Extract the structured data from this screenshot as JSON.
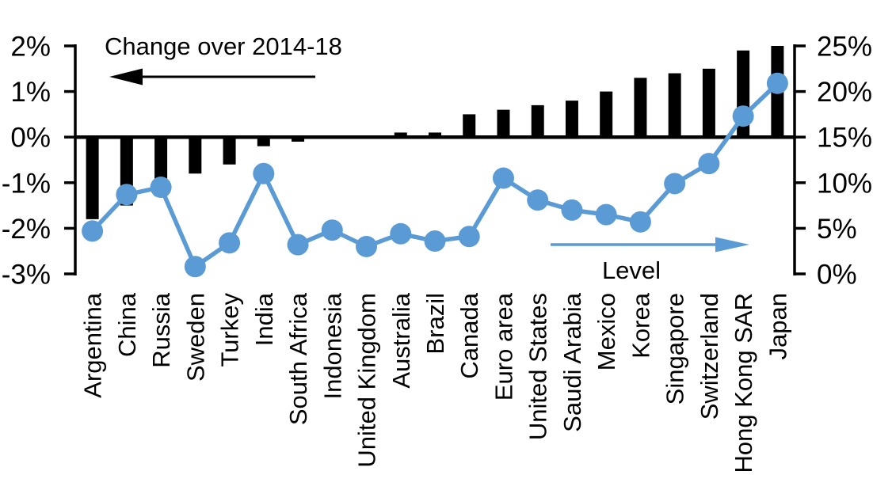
{
  "chart_data": {
    "type": "bar+line-combo",
    "categories": [
      "Argentina",
      "China",
      "Russia",
      "Sweden",
      "Turkey",
      "India",
      "South Africa",
      "Indonesia",
      "United Kingdom",
      "Australia",
      "Brazil",
      "Canada",
      "Euro area",
      "United States",
      "Saudi Arabia",
      "Mexico",
      "Korea",
      "Singapore",
      "Switzerland",
      "Hong Kong SAR",
      "Japan"
    ],
    "series": [
      {
        "name": "Change over 2014-18",
        "type": "bar",
        "axis": "left",
        "unit": "%",
        "color": "#000000",
        "values": [
          -1.8,
          -1.5,
          -1.3,
          -0.8,
          -0.6,
          -0.2,
          -0.1,
          0,
          0,
          0.1,
          0.1,
          0.5,
          0.6,
          0.7,
          0.8,
          1.0,
          1.3,
          1.4,
          1.5,
          1.9,
          2.0
        ]
      },
      {
        "name": "Level",
        "type": "line",
        "axis": "right",
        "unit": "%",
        "color": "#5B9BD5",
        "values": [
          4.7,
          8.7,
          9.5,
          0.8,
          3.4,
          11.0,
          3.2,
          4.8,
          3.0,
          4.4,
          3.6,
          4.1,
          10.5,
          8.1,
          7.0,
          6.5,
          5.7,
          9.9,
          12.1,
          17.3,
          20.9
        ]
      }
    ],
    "left_axis": {
      "min": -3,
      "max": 2,
      "tick_values": [
        2,
        1,
        0,
        -1,
        -2,
        -3
      ],
      "tick_labels": [
        "2%",
        "1%",
        "0%",
        "-1%",
        "-2%",
        "-3%"
      ]
    },
    "right_axis": {
      "min": 0,
      "max": 25,
      "tick_values": [
        25,
        20,
        15,
        10,
        5,
        0
      ],
      "tick_labels": [
        "25%",
        "20%",
        "15%",
        "10%",
        "5%",
        "0%"
      ]
    },
    "annotations": [
      {
        "text": "Change over 2014-18",
        "arrow": "left",
        "arrow_color": "#000000"
      },
      {
        "text": "Level",
        "arrow": "right",
        "arrow_color": "#5B9BD5"
      }
    ],
    "grid": false,
    "legend_position": "none",
    "colors": {
      "bar": "#000000",
      "line": "#5B9BD5",
      "background": "#FFFFFF"
    }
  }
}
